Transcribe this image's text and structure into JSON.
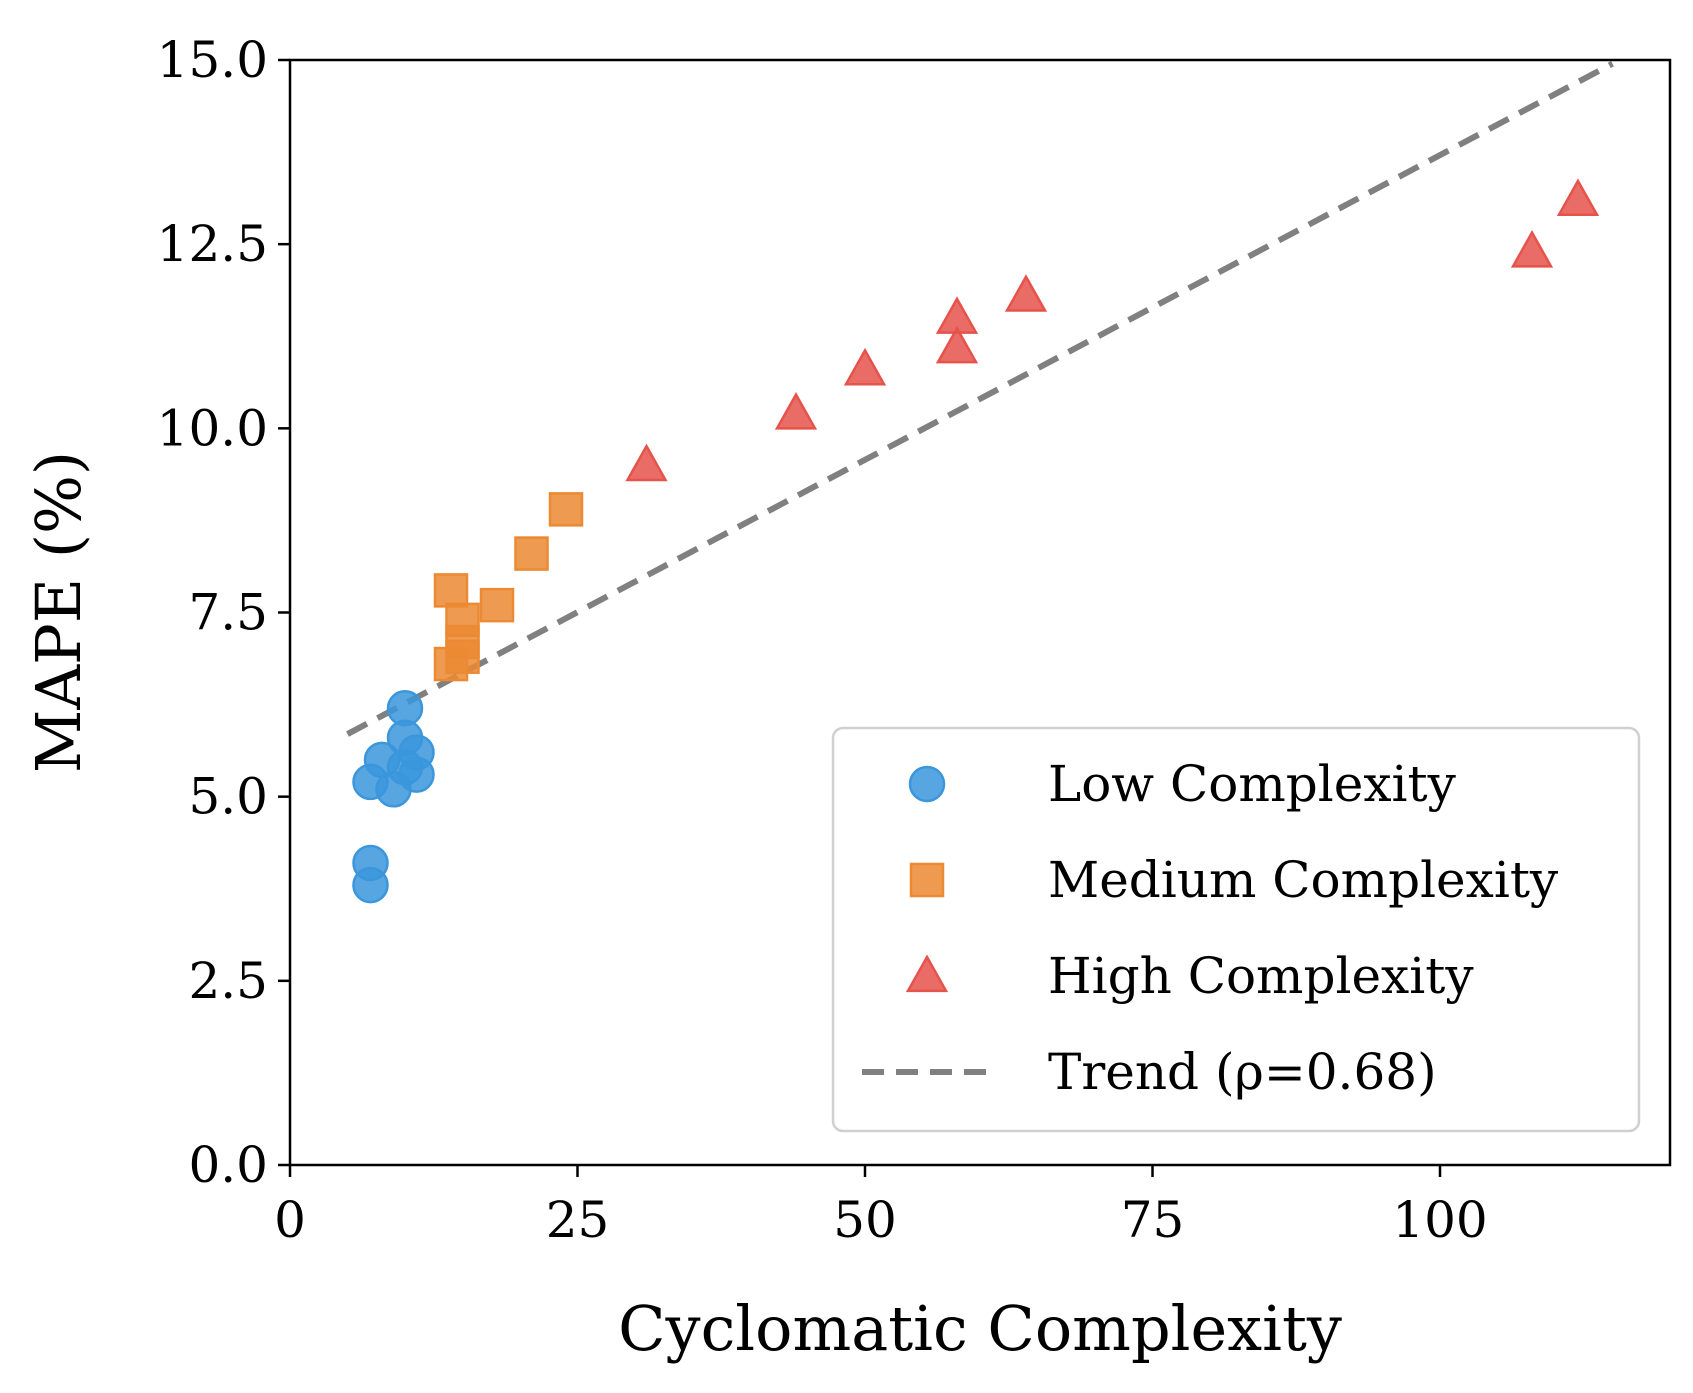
{
  "chart_data": {
    "type": "scatter",
    "title": "",
    "xlabel": "Cyclomatic Complexity",
    "ylabel": "MAPE (%)",
    "xlim": [
      0,
      120
    ],
    "ylim": [
      0,
      15
    ],
    "xticks": [
      0,
      25,
      50,
      75,
      100
    ],
    "xtick_labels": [
      "0",
      "25",
      "50",
      "75",
      "100"
    ],
    "yticks": [
      0,
      2.5,
      5,
      7.5,
      10,
      12.5,
      15
    ],
    "ytick_labels": [
      "0.0",
      "2.5",
      "5.0",
      "7.5",
      "10.0",
      "12.5",
      "15.0"
    ],
    "grid": false,
    "legend_position": "lower-right",
    "series": [
      {
        "name": "Low Complexity",
        "marker": "circle",
        "color": "#3b96dc",
        "points": [
          {
            "x": 7,
            "y": 4.1
          },
          {
            "x": 7,
            "y": 3.8
          },
          {
            "x": 7,
            "y": 5.2
          },
          {
            "x": 8,
            "y": 5.5
          },
          {
            "x": 9,
            "y": 5.1
          },
          {
            "x": 10,
            "y": 5.4
          },
          {
            "x": 10,
            "y": 5.8
          },
          {
            "x": 10,
            "y": 6.2
          },
          {
            "x": 11,
            "y": 5.6
          },
          {
            "x": 11,
            "y": 5.3
          }
        ]
      },
      {
        "name": "Medium Complexity",
        "marker": "square",
        "color": "#eb8a32",
        "points": [
          {
            "x": 14,
            "y": 7.8
          },
          {
            "x": 14,
            "y": 6.8
          },
          {
            "x": 15,
            "y": 7.4
          },
          {
            "x": 15,
            "y": 7.1
          },
          {
            "x": 15,
            "y": 6.9
          },
          {
            "x": 18,
            "y": 7.6
          },
          {
            "x": 21,
            "y": 8.3
          },
          {
            "x": 24,
            "y": 8.9
          }
        ]
      },
      {
        "name": "High Complexity",
        "marker": "triangle",
        "color": "#e5534b",
        "points": [
          {
            "x": 31,
            "y": 9.5
          },
          {
            "x": 44,
            "y": 10.2
          },
          {
            "x": 50,
            "y": 10.8
          },
          {
            "x": 58,
            "y": 11.1
          },
          {
            "x": 58,
            "y": 11.5
          },
          {
            "x": 64,
            "y": 11.8
          },
          {
            "x": 108,
            "y": 12.4
          },
          {
            "x": 112,
            "y": 13.1
          }
        ]
      }
    ],
    "trend": {
      "name": "Trend (ρ=0.68)",
      "color": "#808080",
      "style": "dashed",
      "points": [
        {
          "x": 5,
          "y": 5.85
        },
        {
          "x": 115,
          "y": 14.95
        }
      ]
    }
  }
}
